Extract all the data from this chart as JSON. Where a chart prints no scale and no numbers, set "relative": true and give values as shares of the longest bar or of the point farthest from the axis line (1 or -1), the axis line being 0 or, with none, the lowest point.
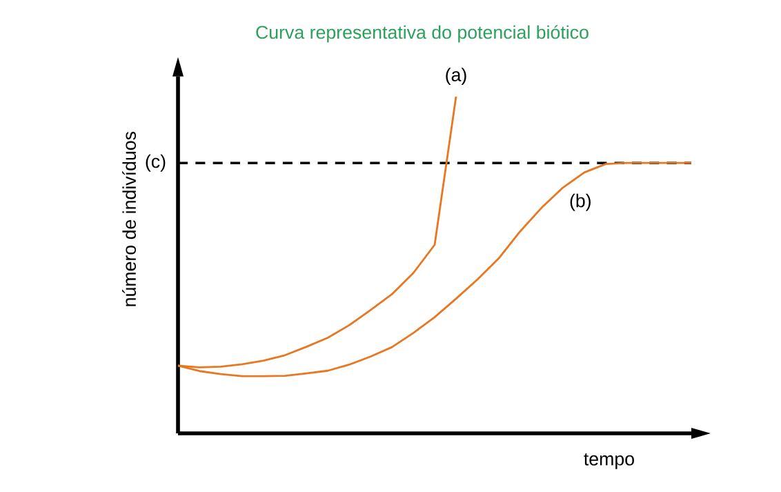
{
  "chart_data": {
    "type": "line",
    "title": "Curva representativa do potencial biótico",
    "xlabel": "tempo",
    "ylabel": "número de indivíduos",
    "relative": true,
    "marker": "none",
    "line_style": "solid",
    "categories": [
      null,
      null,
      null,
      null,
      null,
      null,
      null,
      null,
      null,
      null,
      null,
      null,
      null,
      null,
      null,
      null,
      null,
      null,
      null,
      null,
      null,
      null,
      null,
      null,
      null
    ],
    "series": [
      {
        "name": "(a)",
        "color": "#e87722",
        "values": [
          0.201,
          0.196,
          0.198,
          0.205,
          0.216,
          0.232,
          0.257,
          0.284,
          0.321,
          0.366,
          0.413,
          0.476,
          0.56,
          1,
          null,
          null,
          null,
          null,
          null,
          null,
          null,
          null,
          null,
          null,
          null
        ]
      },
      {
        "name": "(b)",
        "color": "#e87722",
        "values": [
          0.201,
          0.185,
          0.176,
          0.17,
          0.17,
          0.171,
          0.178,
          0.186,
          0.204,
          0.228,
          0.256,
          0.298,
          0.345,
          0.4,
          0.457,
          0.52,
          0.6,
          0.67,
          0.73,
          0.775,
          0.8,
          0.803,
          0.803,
          0.803,
          0.803
        ]
      }
    ],
    "ref_lines": [
      {
        "axis": "y",
        "value": 0.803,
        "label": "(c)",
        "color": "#000000",
        "line_style": "dashed"
      }
    ]
  }
}
